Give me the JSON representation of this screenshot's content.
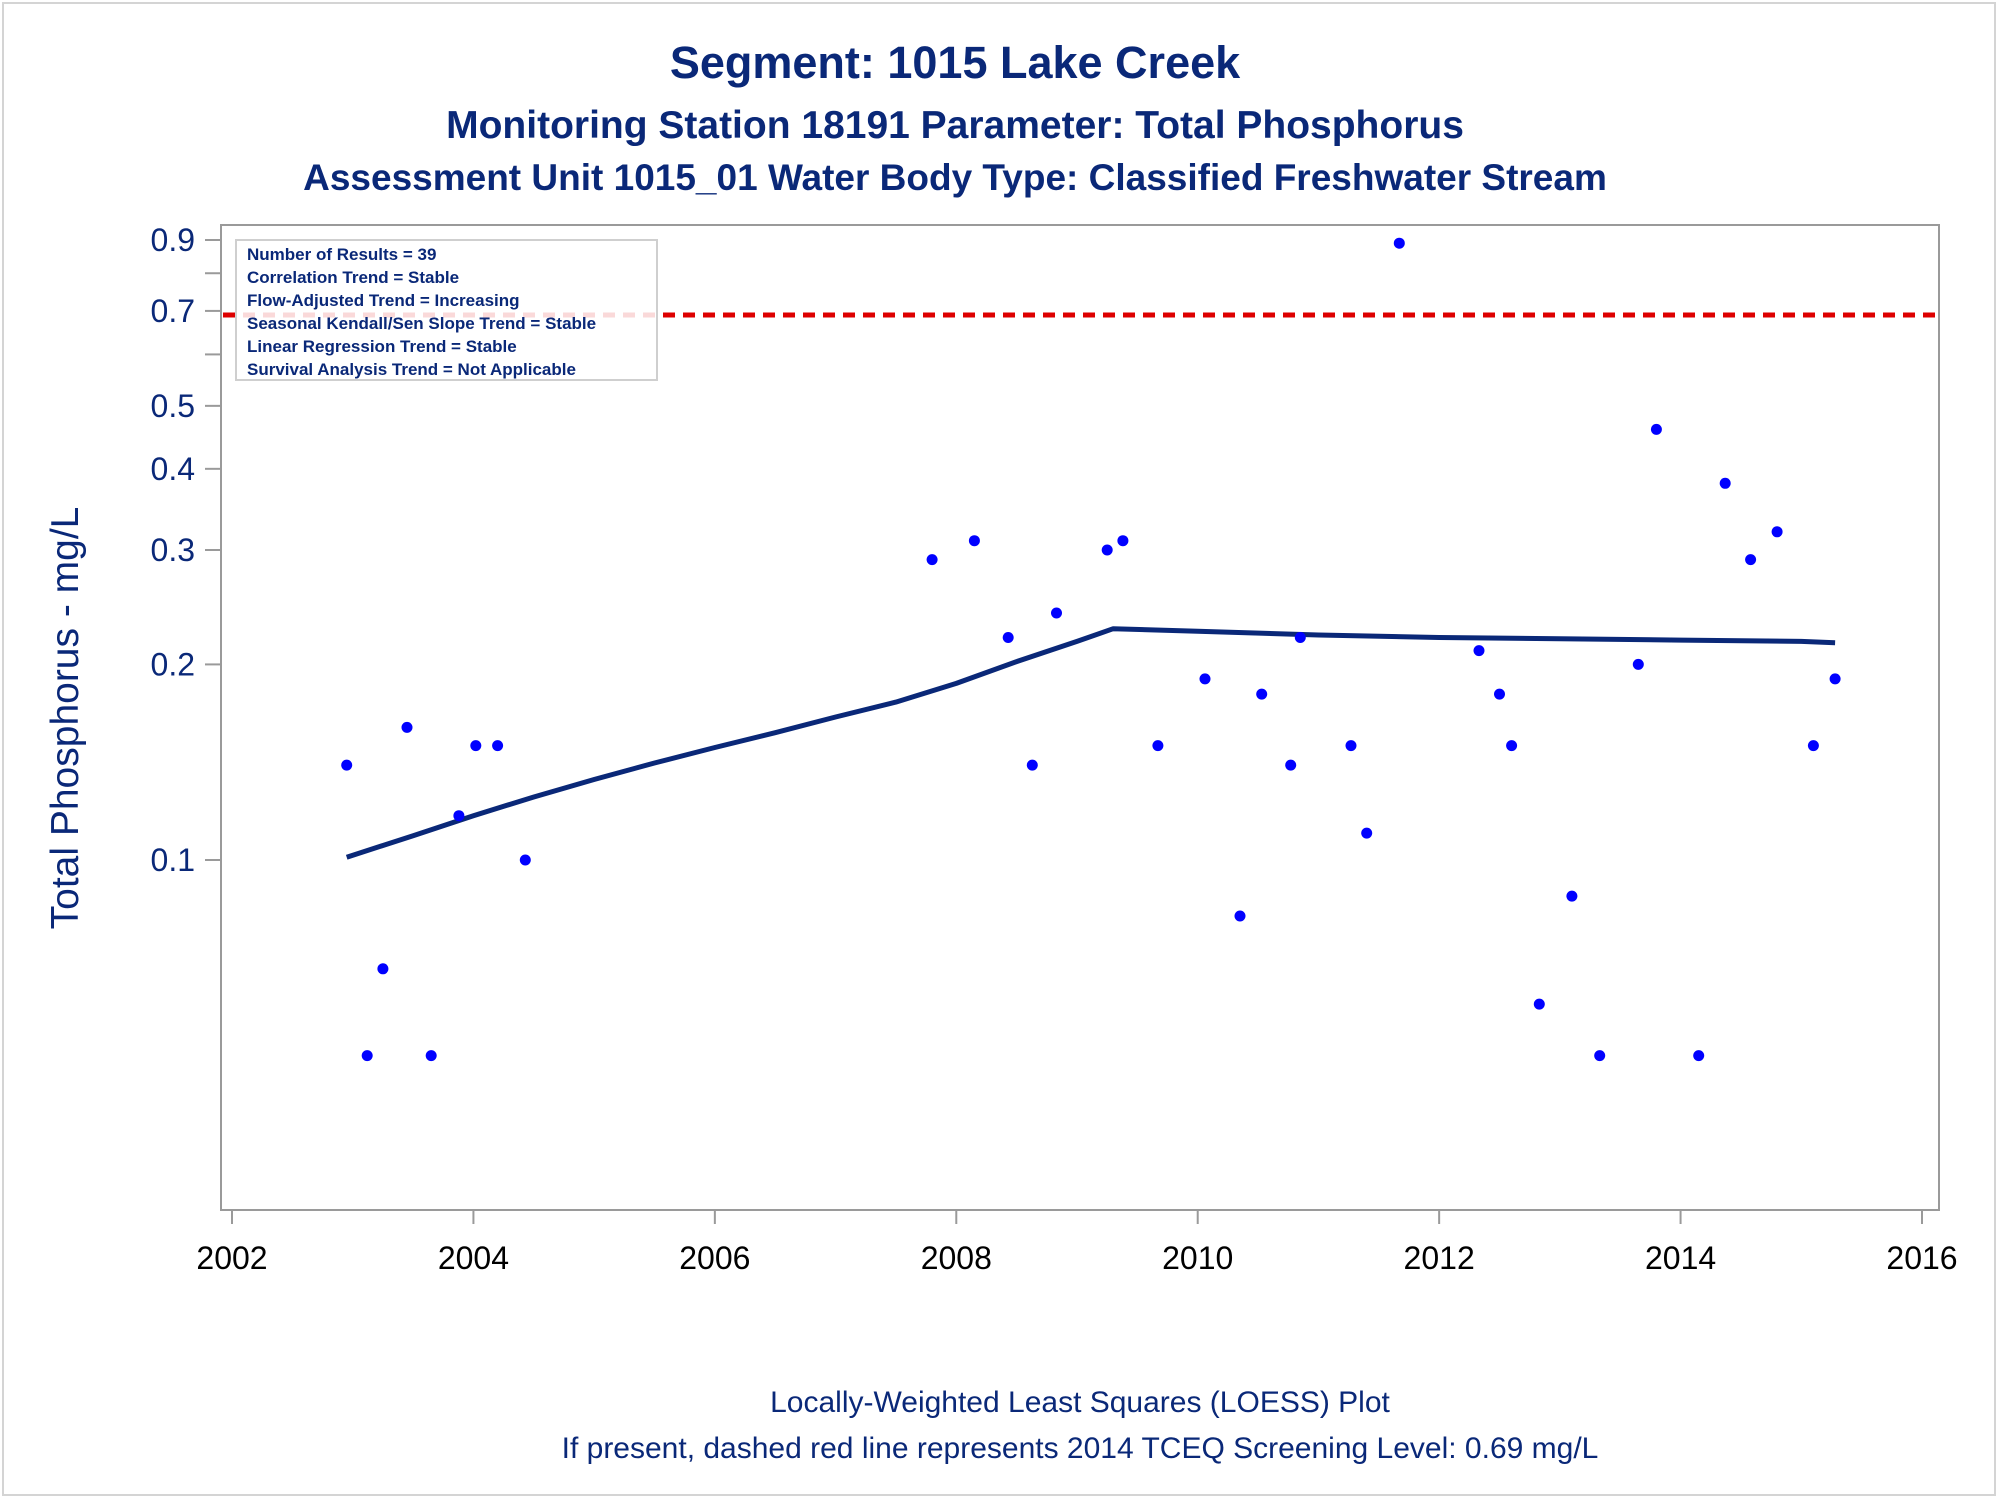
{
  "colors": {
    "text": "#0a2878",
    "axis": "#9a9a9a",
    "points": "#0000ff",
    "loess_line": "#0a2878",
    "screening_line": "#dd0000",
    "frame": "#d4d4d4"
  },
  "titles": {
    "line1": "Segment: 1015  Lake Creek",
    "line2": "Monitoring Station 18191 Parameter: Total Phosphorus",
    "line3": "Assessment Unit 1015_01   Water Body Type: Classified Freshwater Stream"
  },
  "legend_box": {
    "lines": [
      "Number of Results = 39",
      "Correlation Trend = Stable",
      "Flow-Adjusted Trend = Increasing",
      "Seasonal Kendall/Sen Slope Trend = Stable",
      "Linear Regression Trend = Stable",
      "Survival Analysis Trend = Not Applicable"
    ]
  },
  "footnotes": {
    "line1": "Locally-Weighted Least Squares (LOESS) Plot",
    "line2": "If present, dashed red line represents 2014 TCEQ Screening Level: 0.69 mg/L"
  },
  "chart_data": {
    "type": "scatter",
    "title": "Segment: 1015  Lake Creek",
    "xlabel": "",
    "ylabel": "Total Phosphorus - mg/L",
    "xlim": [
      2002,
      2016
    ],
    "ylim": [
      0.05,
      0.95
    ],
    "y_scale": "log",
    "x_ticks": [
      "2002",
      "2004",
      "2006",
      "2008",
      "2010",
      "2012",
      "2014",
      "2016"
    ],
    "x_tick_values": [
      2002,
      2004,
      2006,
      2008,
      2010,
      2012,
      2014,
      2016
    ],
    "y_ticks": [
      "0.1",
      "0.2",
      "0.3",
      "0.4",
      "0.5",
      "0.7",
      "0.9"
    ],
    "y_tick_values": [
      0.1,
      0.2,
      0.3,
      0.4,
      0.5,
      0.7,
      0.9
    ],
    "y_minor_ticks": [
      0.6,
      0.8
    ],
    "grid": false,
    "legend": "top-left",
    "reference_line": {
      "y": 0.69,
      "style": "dashed"
    },
    "series": [
      {
        "type": "scatter",
        "points": [
          [
            2002.95,
            0.14
          ],
          [
            2003.12,
            0.05
          ],
          [
            2003.25,
            0.068
          ],
          [
            2003.45,
            0.16
          ],
          [
            2003.65,
            0.05
          ],
          [
            2003.88,
            0.117
          ],
          [
            2004.02,
            0.15
          ],
          [
            2004.2,
            0.15
          ],
          [
            2004.43,
            0.1
          ],
          [
            2007.8,
            0.29
          ],
          [
            2008.15,
            0.31
          ],
          [
            2008.43,
            0.22
          ],
          [
            2008.63,
            0.14
          ],
          [
            2008.83,
            0.24
          ],
          [
            2009.25,
            0.3
          ],
          [
            2009.38,
            0.31
          ],
          [
            2009.67,
            0.15
          ],
          [
            2010.06,
            0.19
          ],
          [
            2010.35,
            0.082
          ],
          [
            2010.53,
            0.18
          ],
          [
            2010.77,
            0.14
          ],
          [
            2010.85,
            0.22
          ],
          [
            2011.27,
            0.15
          ],
          [
            2011.4,
            0.11
          ],
          [
            2011.67,
            0.89
          ],
          [
            2012.33,
            0.21
          ],
          [
            2012.5,
            0.18
          ],
          [
            2012.6,
            0.15
          ],
          [
            2012.83,
            0.06
          ],
          [
            2013.1,
            0.088
          ],
          [
            2013.33,
            0.05
          ],
          [
            2013.65,
            0.2
          ],
          [
            2013.8,
            0.46
          ],
          [
            2014.15,
            0.05
          ],
          [
            2014.37,
            0.38
          ],
          [
            2014.58,
            0.29
          ],
          [
            2014.8,
            0.32
          ],
          [
            2015.1,
            0.15
          ],
          [
            2015.28,
            0.19
          ]
        ]
      },
      {
        "type": "line",
        "points": [
          [
            2002.95,
            0.101
          ],
          [
            2003.5,
            0.109
          ],
          [
            2004.0,
            0.117
          ],
          [
            2004.5,
            0.125
          ],
          [
            2005.0,
            0.133
          ],
          [
            2005.5,
            0.141
          ],
          [
            2006.0,
            0.149
          ],
          [
            2006.5,
            0.157
          ],
          [
            2007.0,
            0.166
          ],
          [
            2007.5,
            0.175
          ],
          [
            2008.0,
            0.187
          ],
          [
            2008.5,
            0.202
          ],
          [
            2009.0,
            0.217
          ],
          [
            2009.3,
            0.227
          ],
          [
            2010.0,
            0.225
          ],
          [
            2011.0,
            0.222
          ],
          [
            2012.0,
            0.22
          ],
          [
            2013.0,
            0.219
          ],
          [
            2014.0,
            0.218
          ],
          [
            2015.0,
            0.217
          ],
          [
            2015.28,
            0.216
          ]
        ]
      }
    ]
  }
}
